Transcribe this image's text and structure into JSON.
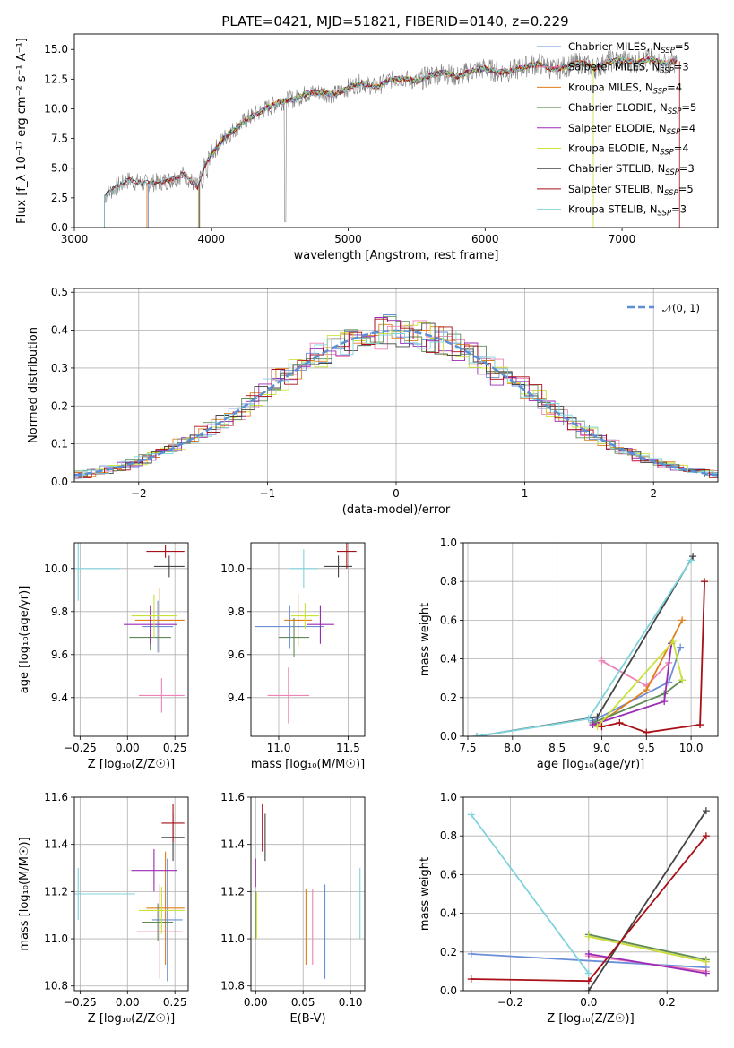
{
  "title": "PLATE=0421, MJD=51821, FIBERID=0140, z=0.229",
  "colors": {
    "Chabrier MILES": "#6a8fd8",
    "Salpeter MILES": "#ee82b6",
    "Kroupa MILES": "#e07e1a",
    "Chabrier ELODIE": "#5e8a55",
    "Salpeter ELODIE": "#9b2ab5",
    "Kroupa ELODIE": "#c9e23a",
    "Chabrier STELIB": "#444444",
    "Salpeter STELIB": "#a80f16",
    "Kroupa STELIB": "#7fd3dc",
    "normal_curve": "#5b8fd6",
    "data_spectrum": "#808080"
  },
  "panels": {
    "spectrum": {
      "xlabel": "wavelength [Angstrom, rest frame]",
      "ylabel": "Flux [f_λ 10⁻¹⁷ erg cm⁻² s⁻¹ A⁻¹]",
      "xticks": [
        "3000",
        "4000",
        "5000",
        "6000",
        "7000"
      ],
      "yticks": [
        "0.0",
        "2.5",
        "5.0",
        "7.5",
        "10.0",
        "12.5",
        "15.0"
      ],
      "legend": [
        {
          "label": "Chabrier MILES, N",
          "sub": "SSP",
          "suffix": "=5"
        },
        {
          "label": "Salpeter MILES, N",
          "sub": "SSP",
          "suffix": "=3"
        },
        {
          "label": "Kroupa MILES, N",
          "sub": "SSP",
          "suffix": "=4"
        },
        {
          "label": "Chabrier ELODIE, N",
          "sub": "SSP",
          "suffix": "=5"
        },
        {
          "label": "Salpeter ELODIE, N",
          "sub": "SSP",
          "suffix": "=4"
        },
        {
          "label": "Kroupa ELODIE, N",
          "sub": "SSP",
          "suffix": "=4"
        },
        {
          "label": "Chabrier STELIB, N",
          "sub": "SSP",
          "suffix": "=3"
        },
        {
          "label": "Salpeter STELIB, N",
          "sub": "SSP",
          "suffix": "=5"
        },
        {
          "label": "Kroupa STELIB, N",
          "sub": "SSP",
          "suffix": "=3"
        }
      ]
    },
    "residuals": {
      "xlabel": "(data-model)/error",
      "ylabel": "Normed distribution",
      "xticks": [
        "−2",
        "−1",
        "0",
        "1",
        "2"
      ],
      "yticks": [
        "0.0",
        "0.1",
        "0.2",
        "0.3",
        "0.4",
        "0.5"
      ],
      "legend_label": "𝒩(0, 1)"
    },
    "age_z": {
      "xlabel": "Z [log₁₀(Z/Z☉)]",
      "ylabel": "age  [log₁₀(age/yr)]",
      "xticks": [
        "−0.25",
        "0.00",
        "0.25"
      ],
      "yticks": [
        "9.4",
        "9.6",
        "9.8",
        "10.0"
      ]
    },
    "age_mass": {
      "xlabel": "mass [log₁₀(M/M☉)]",
      "xticks": [
        "11.0",
        "11.5"
      ],
      "yticks": [
        "9.4",
        "9.6",
        "9.8",
        "10.0"
      ]
    },
    "mw_age": {
      "xlabel": "age  [log₁₀(age/yr)]",
      "ylabel": "mass weight",
      "xticks": [
        "7.5",
        "8.0",
        "8.5",
        "9.0",
        "9.5",
        "10.0"
      ],
      "yticks": [
        "0.0",
        "0.2",
        "0.4",
        "0.6",
        "0.8",
        "1.0"
      ]
    },
    "mass_z": {
      "xlabel": "Z [log₁₀(Z/Z☉)]",
      "ylabel": "mass [log₁₀(M/M☉)]",
      "xticks": [
        "−0.25",
        "0.00",
        "0.25"
      ],
      "yticks": [
        "10.8",
        "11.0",
        "11.2",
        "11.4",
        "11.6"
      ]
    },
    "mass_ebv": {
      "xlabel": "E(B-V)",
      "xticks": [
        "0.00",
        "0.05",
        "0.10"
      ],
      "yticks": [
        "10.8",
        "11.0",
        "11.2",
        "11.4",
        "11.6"
      ]
    },
    "mw_z": {
      "xlabel": "Z [log₁₀(Z/Z☉)]",
      "ylabel": "mass weight",
      "xticks": [
        "−0.2",
        "0.0",
        "0.2"
      ],
      "yticks": [
        "0.0",
        "0.2",
        "0.4",
        "0.6",
        "0.8",
        "1.0"
      ]
    }
  },
  "chart_data": [
    {
      "type": "line",
      "title": "PLATE=0421, MJD=51821, FIBERID=0140, z=0.229",
      "xlabel": "wavelength [Angstrom, rest frame]",
      "ylabel": "Flux [f_λ 10⁻¹⁷ erg cm⁻² s⁻¹ A⁻¹]",
      "xlim": [
        3000,
        7700
      ],
      "ylim": [
        0,
        16.3
      ],
      "series": [
        {
          "name": "data",
          "x": [
            3220,
            3300,
            3400,
            3500,
            3600,
            3700,
            3800,
            3900,
            3950,
            4000,
            4100,
            4200,
            4300,
            4400,
            4500,
            4600,
            4700,
            4800,
            4900,
            5000,
            5100,
            5200,
            5300,
            5400,
            5500,
            5600,
            5700,
            5800,
            5900,
            6000,
            6100,
            6200,
            6300,
            6400,
            6500,
            6600,
            6700,
            6800,
            6900,
            7000,
            7100,
            7200,
            7300,
            7400
          ],
          "y": [
            2.6,
            3.4,
            4.0,
            3.7,
            3.8,
            4.0,
            4.5,
            3.4,
            5.2,
            6.2,
            7.6,
            8.6,
            9.4,
            10.0,
            10.6,
            10.8,
            11.3,
            11.4,
            11.2,
            11.8,
            12.2,
            11.8,
            12.4,
            12.6,
            12.3,
            12.8,
            13.1,
            12.7,
            13.2,
            13.4,
            13.1,
            13.2,
            13.6,
            13.8,
            13.3,
            13.6,
            13.9,
            13.4,
            14.0,
            14.1,
            13.9,
            14.2,
            13.8,
            14.0
          ]
        }
      ]
    },
    {
      "type": "bar",
      "xlabel": "(data-model)/error",
      "ylabel": "Normed distribution",
      "xlim": [
        -2.5,
        2.5
      ],
      "ylim": [
        0,
        0.51
      ],
      "bin_width": 0.1,
      "curve": {
        "name": "𝒩(0, 1)",
        "mu": 0,
        "sigma": 1
      }
    },
    {
      "type": "scatter",
      "xlabel": "Z [log₁₀(Z/Z☉)]",
      "ylabel": "age  [log₁₀(age/yr)]",
      "xlim": [
        -0.28,
        0.32
      ],
      "ylim": [
        9.22,
        10.12
      ],
      "points": [
        {
          "name": "Chabrier MILES",
          "x": 0.16,
          "y": 9.73,
          "xerr": 0.08,
          "yerr": 0.12
        },
        {
          "name": "Salpeter MILES",
          "x": 0.18,
          "y": 9.41,
          "xerr": 0.12,
          "yerr": 0.08
        },
        {
          "name": "Kroupa MILES",
          "x": 0.17,
          "y": 9.76,
          "xerr": 0.13,
          "yerr": 0.15
        },
        {
          "name": "Chabrier ELODIE",
          "x": 0.12,
          "y": 9.68,
          "xerr": 0.11,
          "yerr": 0.06
        },
        {
          "name": "Salpeter ELODIE",
          "x": 0.12,
          "y": 9.74,
          "xerr": 0.14,
          "yerr": 0.09
        },
        {
          "name": "Kroupa ELODIE",
          "x": 0.14,
          "y": 9.78,
          "xerr": 0.12,
          "yerr": 0.1
        },
        {
          "name": "Chabrier STELIB",
          "x": 0.22,
          "y": 10.01,
          "xerr": 0.08,
          "yerr": 0.05
        },
        {
          "name": "Salpeter STELIB",
          "x": 0.2,
          "y": 10.08,
          "xerr": 0.1,
          "yerr": 0.03
        },
        {
          "name": "Kroupa STELIB",
          "x": -0.26,
          "y": 10.0,
          "xerr": 0.22,
          "yerr": 0.15
        }
      ]
    },
    {
      "type": "scatter",
      "xlabel": "mass [log₁₀(M/M☉)]",
      "ylabel": "age  [log₁₀(age/yr)]",
      "xlim": [
        10.8,
        11.62
      ],
      "ylim": [
        9.22,
        10.12
      ],
      "points": [
        {
          "name": "Chabrier MILES",
          "x": 11.08,
          "y": 9.73,
          "xerr": 0.25,
          "yerr": 0.1
        },
        {
          "name": "Salpeter MILES",
          "x": 11.07,
          "y": 9.41,
          "xerr": 0.15,
          "yerr": 0.13
        },
        {
          "name": "Kroupa MILES",
          "x": 11.14,
          "y": 9.76,
          "xerr": 0.1,
          "yerr": 0.12
        },
        {
          "name": "Chabrier ELODIE",
          "x": 11.11,
          "y": 9.68,
          "xerr": 0.11,
          "yerr": 0.09
        },
        {
          "name": "Salpeter ELODIE",
          "x": 11.3,
          "y": 9.74,
          "xerr": 0.1,
          "yerr": 0.09
        },
        {
          "name": "Kroupa ELODIE",
          "x": 11.19,
          "y": 9.78,
          "xerr": 0.1,
          "yerr": 0.06
        },
        {
          "name": "Chabrier STELIB",
          "x": 11.43,
          "y": 10.01,
          "xerr": 0.1,
          "yerr": 0.05
        },
        {
          "name": "Salpeter STELIB",
          "x": 11.49,
          "y": 10.08,
          "xerr": 0.07,
          "yerr": 0.08
        },
        {
          "name": "Kroupa STELIB",
          "x": 11.18,
          "y": 10.0,
          "xerr": 0.1,
          "yerr": 0.09
        }
      ]
    },
    {
      "type": "line",
      "xlabel": "age  [log₁₀(age/yr)]",
      "ylabel": "mass weight",
      "xlim": [
        7.45,
        10.3
      ],
      "ylim": [
        0,
        1
      ],
      "series": [
        {
          "name": "Chabrier MILES",
          "x": [
            8.9,
            9.75,
            9.88
          ],
          "y": [
            0.08,
            0.28,
            0.46
          ]
        },
        {
          "name": "Salpeter MILES",
          "x": [
            9.0,
            9.5,
            9.75
          ],
          "y": [
            0.39,
            0.26,
            0.38
          ]
        },
        {
          "name": "Kroupa MILES",
          "x": [
            8.95,
            9.5,
            9.9
          ],
          "y": [
            0.06,
            0.24,
            0.6
          ]
        },
        {
          "name": "Chabrier ELODIE",
          "x": [
            8.9,
            9.7,
            9.9
          ],
          "y": [
            0.07,
            0.22,
            0.29
          ]
        },
        {
          "name": "Salpeter ELODIE",
          "x": [
            8.9,
            9.7,
            9.78
          ],
          "y": [
            0.06,
            0.18,
            0.48
          ]
        },
        {
          "name": "Kroupa ELODIE",
          "x": [
            8.95,
            9.8,
            9.9
          ],
          "y": [
            0.05,
            0.49,
            0.29
          ]
        },
        {
          "name": "Chabrier STELIB",
          "x": [
            7.6,
            8.95,
            10.02
          ],
          "y": [
            0.0,
            0.1,
            0.93
          ]
        },
        {
          "name": "Salpeter STELIB",
          "x": [
            9.0,
            9.2,
            9.5,
            10.1,
            10.15
          ],
          "y": [
            0.05,
            0.07,
            0.02,
            0.06,
            0.8
          ]
        },
        {
          "name": "Kroupa STELIB",
          "x": [
            7.6,
            8.85,
            10.0
          ],
          "y": [
            0.0,
            0.09,
            0.91
          ]
        }
      ]
    },
    {
      "type": "scatter",
      "xlabel": "Z [log₁₀(Z/Z☉)]",
      "ylabel": "mass [log₁₀(M/M☉)]",
      "xlim": [
        -0.28,
        0.32
      ],
      "ylim": [
        10.78,
        11.6
      ],
      "points": [
        {
          "name": "Chabrier MILES",
          "x": 0.21,
          "y": 11.08,
          "xerr": 0.08,
          "yerr": 0.26
        },
        {
          "name": "Salpeter MILES",
          "x": 0.17,
          "y": 11.03,
          "xerr": 0.12,
          "yerr": 0.2
        },
        {
          "name": "Kroupa MILES",
          "x": 0.2,
          "y": 11.13,
          "xerr": 0.1,
          "yerr": 0.24
        },
        {
          "name": "Chabrier ELODIE",
          "x": 0.16,
          "y": 11.07,
          "xerr": 0.08,
          "yerr": 0.08
        },
        {
          "name": "Salpeter ELODIE",
          "x": 0.14,
          "y": 11.29,
          "xerr": 0.12,
          "yerr": 0.09
        },
        {
          "name": "Kroupa ELODIE",
          "x": 0.18,
          "y": 11.12,
          "xerr": 0.12,
          "yerr": 0.1
        },
        {
          "name": "Chabrier STELIB",
          "x": 0.24,
          "y": 11.43,
          "xerr": 0.06,
          "yerr": 0.1
        },
        {
          "name": "Salpeter STELIB",
          "x": 0.24,
          "y": 11.49,
          "xerr": 0.06,
          "yerr": 0.08
        },
        {
          "name": "Kroupa STELIB",
          "x": -0.26,
          "y": 11.19,
          "xerr": 0.3,
          "yerr": 0.11
        }
      ]
    },
    {
      "type": "scatter",
      "xlabel": "E(B-V)",
      "ylabel": "mass [log₁₀(M/M☉)]",
      "xlim": [
        -0.005,
        0.115
      ],
      "ylim": [
        10.78,
        11.6
      ],
      "points": [
        {
          "name": "Chabrier MILES",
          "x": 0.073,
          "y": 11.03,
          "xerr": 0,
          "yerr": 0.2
        },
        {
          "name": "Salpeter MILES",
          "x": 0.06,
          "y": 11.05,
          "xerr": 0,
          "yerr": 0.16
        },
        {
          "name": "Kroupa MILES",
          "x": 0.053,
          "y": 11.05,
          "xerr": 0,
          "yerr": 0.16
        },
        {
          "name": "Chabrier ELODIE",
          "x": 0.0,
          "y": 11.1,
          "xerr": 0,
          "yerr": 0.1
        },
        {
          "name": "Salpeter ELODIE",
          "x": 0.0,
          "y": 11.28,
          "xerr": 0,
          "yerr": 0.06
        },
        {
          "name": "Kroupa ELODIE",
          "x": 0.001,
          "y": 11.1,
          "xerr": 0,
          "yerr": 0.1
        },
        {
          "name": "Chabrier STELIB",
          "x": 0.01,
          "y": 11.43,
          "xerr": 0,
          "yerr": 0.1
        },
        {
          "name": "Salpeter STELIB",
          "x": 0.007,
          "y": 11.47,
          "xerr": 0,
          "yerr": 0.1
        },
        {
          "name": "Kroupa STELIB",
          "x": 0.11,
          "y": 11.15,
          "xerr": 0,
          "yerr": 0.15
        }
      ]
    },
    {
      "type": "line",
      "xlabel": "Z [log₁₀(Z/Z☉)]",
      "ylabel": "mass weight",
      "xlim": [
        -0.32,
        0.33
      ],
      "ylim": [
        0,
        1
      ],
      "series": [
        {
          "name": "Chabrier MILES",
          "x": [
            -0.3,
            0.3
          ],
          "y": [
            0.19,
            0.12
          ]
        },
        {
          "name": "Salpeter MILES",
          "x": [
            0.0,
            0.3
          ],
          "y": [
            0.18,
            0.1
          ]
        },
        {
          "name": "Kroupa MILES",
          "x": [
            0.0,
            0.3
          ],
          "y": [
            0.28,
            0.15
          ]
        },
        {
          "name": "Chabrier ELODIE",
          "x": [
            0.0,
            0.3
          ],
          "y": [
            0.29,
            0.16
          ]
        },
        {
          "name": "Salpeter ELODIE",
          "x": [
            0.0,
            0.3
          ],
          "y": [
            0.19,
            0.09
          ]
        },
        {
          "name": "Kroupa ELODIE",
          "x": [
            0.0,
            0.3
          ],
          "y": [
            0.28,
            0.15
          ]
        },
        {
          "name": "Chabrier STELIB",
          "x": [
            0.0,
            0.3
          ],
          "y": [
            0.0,
            0.93
          ]
        },
        {
          "name": "Salpeter STELIB",
          "x": [
            -0.3,
            0.0,
            0.3
          ],
          "y": [
            0.06,
            0.05,
            0.8
          ]
        },
        {
          "name": "Kroupa STELIB",
          "x": [
            -0.3,
            0.0
          ],
          "y": [
            0.91,
            0.09
          ]
        }
      ]
    }
  ]
}
